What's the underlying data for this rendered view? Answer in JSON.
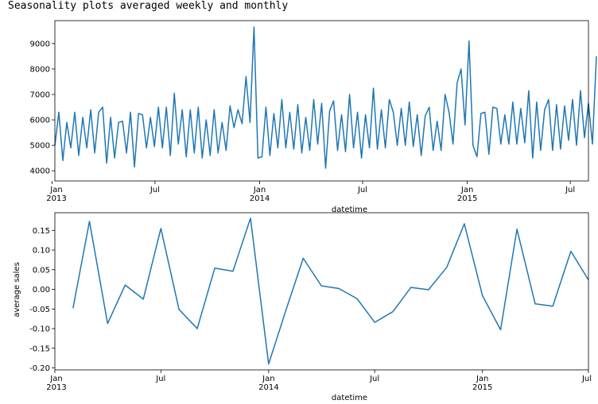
{
  "figure": {
    "title": "Seasonality plots averaged weekly and monthly"
  },
  "colors": {
    "line": "#1f77b4",
    "axis": "#000000",
    "background": "#ffffff"
  },
  "chart_data": [
    {
      "type": "line",
      "title": "",
      "xlabel": "datetime",
      "ylabel": "",
      "x_range": [
        "2013-01-06",
        "2015-08-02"
      ],
      "ylim": [
        3600,
        9900
      ],
      "yticks": [
        4000,
        5000,
        6000,
        7000,
        8000,
        9000
      ],
      "xticks": [
        {
          "date": "2013-01-01",
          "label": "Jan",
          "sublabel": "2013"
        },
        {
          "date": "2013-07-01",
          "label": "Jul",
          "sublabel": ""
        },
        {
          "date": "2014-01-01",
          "label": "Jan",
          "sublabel": "2014"
        },
        {
          "date": "2014-07-01",
          "label": "Jul",
          "sublabel": ""
        },
        {
          "date": "2015-01-01",
          "label": "Jan",
          "sublabel": "2015"
        },
        {
          "date": "2015-07-01",
          "label": "Jul",
          "sublabel": ""
        }
      ],
      "grid": false,
      "series": [
        {
          "x_start": "2013-01-06",
          "x_step_days": 7,
          "values": [
            5000,
            6300,
            4400,
            5900,
            4900,
            6300,
            4600,
            6100,
            4900,
            6400,
            4700,
            6300,
            6500,
            4300,
            6100,
            4500,
            5900,
            5950,
            4700,
            6300,
            4150,
            6250,
            6200,
            4900,
            6100,
            4950,
            6500,
            4900,
            6500,
            4600,
            7050,
            5050,
            6400,
            4550,
            6400,
            4700,
            6500,
            4500,
            6000,
            4600,
            6400,
            4700,
            5900,
            4800,
            6550,
            5700,
            6400,
            5850,
            7700,
            5900,
            9650,
            4500,
            4550,
            6500,
            4600,
            6250,
            4900,
            6800,
            4900,
            6300,
            4850,
            6600,
            4700,
            6100,
            4800,
            6800,
            5050,
            6650,
            4100,
            6350,
            6750,
            4800,
            6200,
            4750,
            7000,
            4900,
            6300,
            4500,
            6200,
            4900,
            7250,
            4850,
            6400,
            4900,
            6800,
            6300,
            5000,
            6450,
            5000,
            6700,
            4950,
            6200,
            4600,
            6150,
            6500,
            4800,
            5950,
            4800,
            7000,
            6300,
            5050,
            7450,
            8000,
            5800,
            9100,
            5000,
            4550,
            6250,
            6300,
            4650,
            6500,
            6450,
            5050,
            6200,
            5050,
            6700,
            5050,
            6450,
            5100,
            7150,
            4500,
            6700,
            4800,
            6400,
            6800,
            4800,
            6600,
            4850,
            6550,
            5200,
            6800,
            5000,
            7150,
            5300,
            6650,
            5050,
            8500
          ]
        }
      ]
    },
    {
      "type": "line",
      "title": "",
      "xlabel": "datetime",
      "ylabel": "average sales",
      "x_range": [
        "2013-01-01",
        "2015-07-01"
      ],
      "ylim": [
        -0.205,
        0.195
      ],
      "yticks": [
        -0.2,
        -0.15,
        -0.1,
        -0.05,
        0.0,
        0.05,
        0.1,
        0.15
      ],
      "ytick_labels": [
        "-0.20",
        "-0.15",
        "-0.10",
        "-0.05",
        "0.00",
        "0.05",
        "0.10",
        "0.15"
      ],
      "xticks": [
        {
          "date": "2013-01-01",
          "label": "Jan",
          "sublabel": "2013"
        },
        {
          "date": "2013-07-01",
          "label": "Jul",
          "sublabel": ""
        },
        {
          "date": "2014-01-01",
          "label": "Jan",
          "sublabel": "2014"
        },
        {
          "date": "2014-07-01",
          "label": "Jul",
          "sublabel": ""
        },
        {
          "date": "2015-01-01",
          "label": "Jan",
          "sublabel": "2015"
        },
        {
          "date": "2015-07-01",
          "label": "Jul",
          "sublabel": ""
        }
      ],
      "grid": false,
      "series": [
        {
          "x_start": "2013-02-01",
          "x_step_months": 1,
          "values": [
            -0.048,
            0.173,
            -0.087,
            0.011,
            -0.025,
            0.155,
            -0.051,
            -0.1,
            0.054,
            0.046,
            0.181,
            -0.19,
            -0.046,
            0.079,
            0.009,
            0.002,
            -0.024,
            -0.084,
            -0.057,
            0.005,
            -0.001,
            0.056,
            0.167,
            -0.016,
            -0.103,
            0.153,
            -0.037,
            -0.043,
            0.097,
            0.024
          ]
        }
      ]
    }
  ]
}
